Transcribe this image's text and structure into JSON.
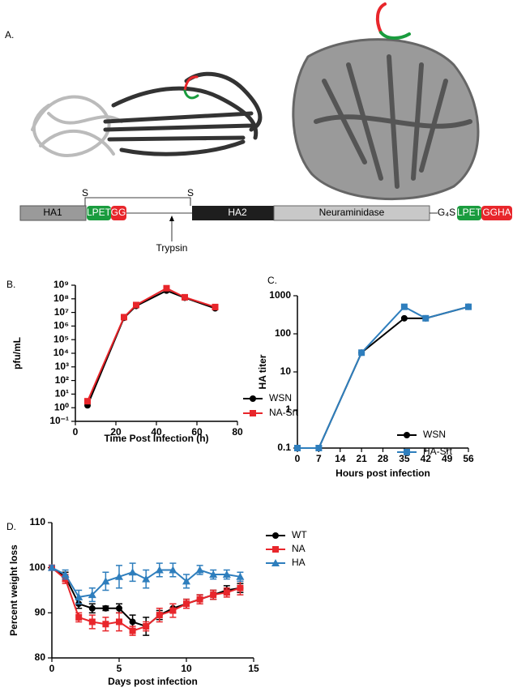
{
  "panel_a": {
    "label": "A.",
    "ha_construct": {
      "ha1": "HA1",
      "lpet": "LPET",
      "gg": "GG",
      "ha2": "HA2",
      "s_left": "S",
      "s_right": "S",
      "trypsin": "Trypsin"
    },
    "na_construct": {
      "neuraminidase": "Neuraminidase",
      "linker": "G₄S",
      "lpet": "LPET",
      "gg": "GGHA"
    }
  },
  "chart_data": [
    {
      "type": "line",
      "label": "B.",
      "y_label": "pfu/mL",
      "x_label": "Time Post Infection  (h)",
      "log_y": true,
      "xlim": [
        0,
        80
      ],
      "xticks": [
        0,
        20,
        40,
        60,
        80
      ],
      "ylim": [
        0.1,
        1000000000
      ],
      "yticks": [
        {
          "value": 0.1,
          "label": "10⁻¹"
        },
        {
          "value": 1,
          "label": "10⁰"
        },
        {
          "value": 10,
          "label": "10¹"
        },
        {
          "value": 100,
          "label": "10²"
        },
        {
          "value": 1000,
          "label": "10³"
        },
        {
          "value": 10000,
          "label": "10⁴"
        },
        {
          "value": 100000,
          "label": "10⁵"
        },
        {
          "value": 1000000,
          "label": "10⁶"
        },
        {
          "value": 10000000,
          "label": "10⁷"
        },
        {
          "value": 100000000,
          "label": "10⁸"
        },
        {
          "value": 1000000000,
          "label": "10⁹"
        }
      ],
      "x": [
        6,
        24,
        30,
        45,
        54,
        69
      ],
      "series": [
        {
          "name": "WSN",
          "color": "#000000",
          "marker": "circle",
          "values": [
            1.5,
            4000000,
            30000000,
            400000000,
            120000000,
            20000000
          ]
        },
        {
          "name": "NA-Srt",
          "color": "#e8262b",
          "marker": "square",
          "values": [
            3,
            4500000,
            35000000,
            600000000,
            130000000,
            25000000
          ]
        }
      ]
    },
    {
      "type": "line",
      "label": "C.",
      "y_label": "HA titer",
      "x_label": "Hours post infection",
      "log_y": true,
      "xlim": [
        0,
        56
      ],
      "xticks": [
        0,
        7,
        14,
        21,
        28,
        35,
        42,
        49,
        56
      ],
      "ylim": [
        0.1,
        1000
      ],
      "yticks": [
        0.1,
        1,
        10,
        100,
        1000
      ],
      "x": [
        0,
        7,
        21,
        35,
        42,
        56
      ],
      "series": [
        {
          "name": "WSN",
          "color": "#000000",
          "marker": "circle",
          "values": [
            0.1,
            0.1,
            32,
            256,
            256,
            512
          ]
        },
        {
          "name": "HA-Srt",
          "color": "#2e7ebd",
          "marker": "square",
          "values": [
            0.1,
            0.1,
            32,
            512,
            256,
            512
          ]
        }
      ]
    },
    {
      "type": "line",
      "label": "D.",
      "y_label": "Percent weight loss",
      "x_label": "Days post infection",
      "log_y": false,
      "xlim": [
        0,
        15
      ],
      "xticks": [
        0,
        5,
        10,
        15
      ],
      "ylim": [
        80,
        110
      ],
      "yticks": [
        80,
        90,
        100,
        110
      ],
      "x": [
        0,
        1,
        2,
        3,
        4,
        5,
        6,
        7,
        8,
        9,
        10,
        11,
        12,
        13,
        14
      ],
      "series": [
        {
          "name": "WT",
          "color": "#000000",
          "marker": "circle",
          "values": [
            100,
            98,
            92,
            91,
            91,
            91,
            88,
            87,
            89.5,
            91,
            92,
            93,
            94,
            95,
            95.5
          ],
          "errors": [
            0.5,
            1,
            1,
            1,
            0.5,
            1,
            1.5,
            2,
            1,
            1,
            1,
            1,
            1,
            1,
            1
          ]
        },
        {
          "name": "NA",
          "color": "#e8262b",
          "marker": "square",
          "values": [
            100,
            97.5,
            89,
            88,
            87.5,
            88,
            86,
            87,
            89.5,
            90.5,
            92,
            93,
            94,
            94.5,
            95.5
          ],
          "errors": [
            0.5,
            1,
            1,
            1.5,
            1.5,
            2,
            1,
            1,
            1.5,
            1.5,
            1,
            1,
            1,
            1,
            1.5
          ]
        },
        {
          "name": "HA",
          "color": "#2e7ebd",
          "marker": "triangle",
          "values": [
            100,
            98.5,
            93.5,
            94,
            97,
            98,
            99,
            97.5,
            99.5,
            99.5,
            97,
            99.5,
            98.5,
            98.5,
            98
          ],
          "errors": [
            0.5,
            1,
            1.5,
            1.5,
            2,
            2.5,
            2,
            2,
            1.5,
            1.5,
            1.5,
            1,
            1,
            1,
            1
          ]
        }
      ]
    }
  ]
}
